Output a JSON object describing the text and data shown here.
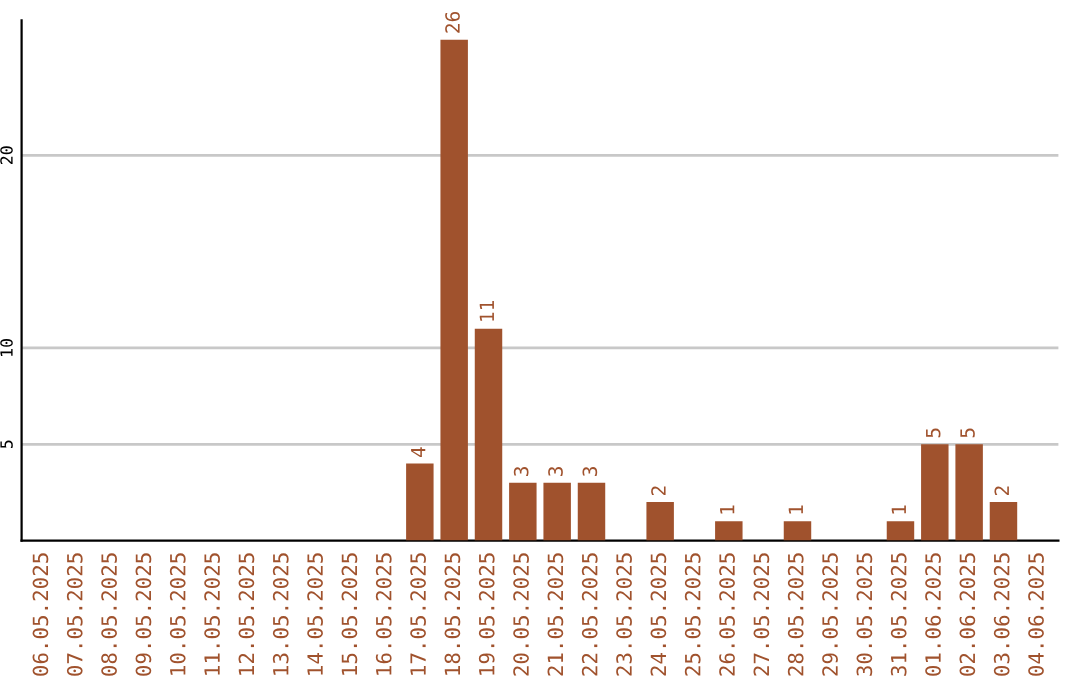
{
  "chart_data": {
    "type": "bar",
    "categories": [
      "06.05.2025",
      "07.05.2025",
      "08.05.2025",
      "09.05.2025",
      "10.05.2025",
      "11.05.2025",
      "12.05.2025",
      "13.05.2025",
      "14.05.2025",
      "15.05.2025",
      "16.05.2025",
      "17.05.2025",
      "18.05.2025",
      "19.05.2025",
      "20.05.2025",
      "21.05.2025",
      "22.05.2025",
      "23.05.2025",
      "24.05.2025",
      "25.05.2025",
      "26.05.2025",
      "27.05.2025",
      "28.05.2025",
      "29.05.2025",
      "30.05.2025",
      "31.05.2025",
      "01.06.2025",
      "02.06.2025",
      "03.06.2025",
      "04.06.2025"
    ],
    "values": [
      0,
      0,
      0,
      0,
      0,
      0,
      0,
      0,
      0,
      0,
      0,
      4,
      26,
      11,
      3,
      3,
      3,
      0,
      2,
      0,
      1,
      0,
      1,
      0,
      0,
      1,
      5,
      5,
      2,
      0
    ],
    "value_labels": [
      null,
      null,
      null,
      null,
      null,
      null,
      null,
      null,
      null,
      null,
      null,
      "4",
      "26",
      "11",
      "3",
      "3",
      "3",
      null,
      "2",
      null,
      "1",
      null,
      "1",
      null,
      null,
      "1",
      "5",
      "5",
      "2",
      null
    ],
    "color": "#a0522d",
    "ylim": [
      0,
      27
    ],
    "yticks": [
      5,
      10,
      20
    ],
    "grid": "y"
  }
}
